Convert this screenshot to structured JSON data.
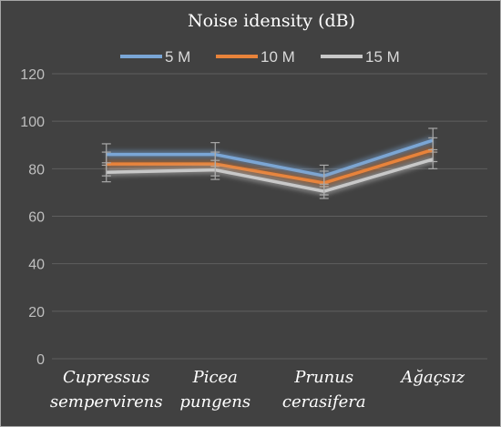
{
  "chart_data": {
    "type": "line",
    "title": "Noise idensity (dB)",
    "xlabel": "",
    "ylabel": "",
    "categories": [
      [
        "Cupressus",
        "sempervirens"
      ],
      [
        "Picea",
        "pungens"
      ],
      [
        "Prunus",
        "cerasifera"
      ],
      [
        "Ağaçsız"
      ]
    ],
    "ylim": [
      0,
      120
    ],
    "yticks": [
      0,
      20,
      40,
      60,
      80,
      100,
      120
    ],
    "grid": true,
    "legend_position": "top",
    "series": [
      {
        "name": "5 M",
        "color": "#7aa6d6",
        "values": [
          86,
          86,
          77,
          92
        ],
        "errors": [
          4.5,
          5,
          4.5,
          5
        ]
      },
      {
        "name": "10 M",
        "color": "#e8833a",
        "values": [
          82,
          82,
          74,
          88
        ],
        "errors": [
          5,
          5,
          5,
          5
        ]
      },
      {
        "name": "15 M",
        "color": "#c8c8c8",
        "values": [
          78.5,
          79.5,
          70.5,
          84
        ],
        "errors": [
          4,
          4,
          3,
          4
        ]
      }
    ]
  }
}
